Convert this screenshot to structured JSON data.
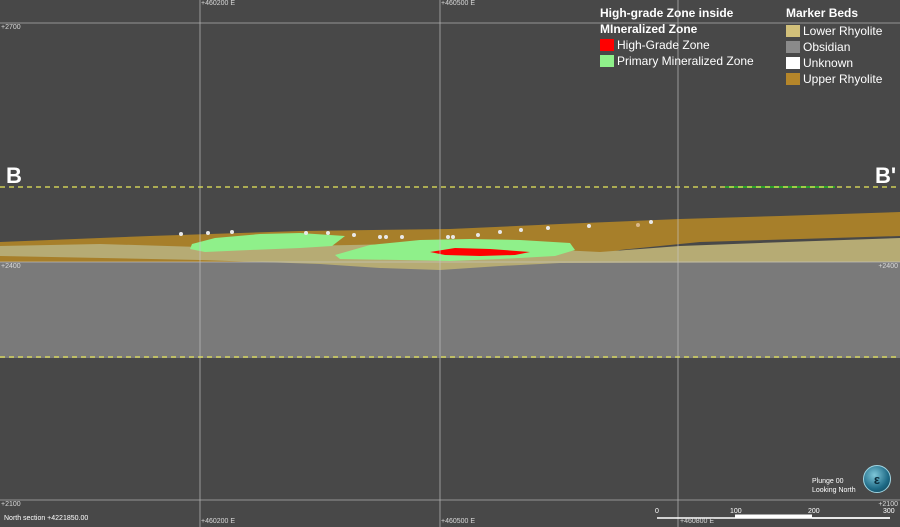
{
  "grid": {
    "easting_top": [
      "+460200 E",
      "+460500 E"
    ],
    "easting_bottom": [
      "+460200 E",
      "+460500 E",
      "+460800 E"
    ],
    "elevation_left": [
      "+2700",
      "+2400",
      "+2100"
    ],
    "elevation_right": [
      "+2400",
      "+2100"
    ]
  },
  "section_markers": {
    "start": "B",
    "end": "B'"
  },
  "legend_zones": {
    "title": "High-grade Zone inside MIneralized Zone",
    "items": [
      {
        "label": "High-Grade Zone",
        "color": "#ff0000"
      },
      {
        "label": "Primary Mineralized Zone",
        "color": "#8ff08a"
      }
    ]
  },
  "legend_beds": {
    "title": "Marker Beds",
    "items": [
      {
        "label": "Lower Rhyolite",
        "color": "#d2c07a"
      },
      {
        "label": "Obsidian",
        "color": "#8a8a8a"
      },
      {
        "label": "Unknown",
        "color": "#ffffff"
      },
      {
        "label": "Upper Rhyolite",
        "color": "#b5862a"
      }
    ]
  },
  "view": {
    "plunge": "Plunge 00",
    "looking": "Looking North"
  },
  "section_label": "North section +4221850.00",
  "scale_bar": {
    "ticks": [
      "0",
      "100",
      "200",
      "300"
    ]
  },
  "logo_text": "ε",
  "colors": {
    "background": "#484848",
    "obsidian": "#7a7a7a",
    "upper_rhyolite": "#a77f2a",
    "lower_rhyolite": "#b6ab74",
    "mineralized": "#8ff08a",
    "high_grade": "#ff0000",
    "dashed_line": "#e8e85a"
  }
}
